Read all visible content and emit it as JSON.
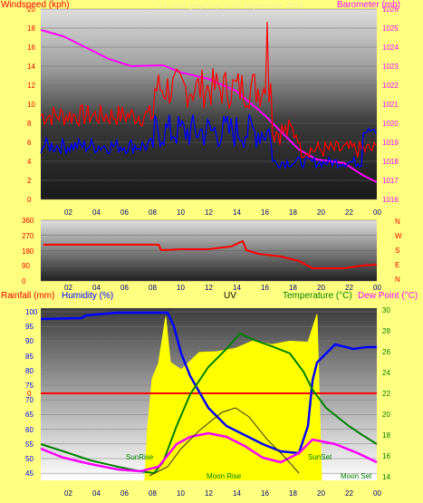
{
  "top_chart": {
    "left_title": "Windspeed (kph)",
    "right_title": "Barometer (mb)",
    "faint_title": "24 hour graph up to 09 September 2016",
    "y_left_ticks": [
      "20",
      "18",
      "16",
      "14",
      "12",
      "10",
      "8",
      "6",
      "4",
      "2",
      "0"
    ],
    "y_right_ticks": [
      "1026",
      "1025",
      "1024",
      "1023",
      "1022",
      "1021",
      "1020",
      "1019",
      "1018",
      "1017",
      "1016"
    ],
    "x_ticks": [
      "02",
      "04",
      "06",
      "08",
      "10",
      "12",
      "14",
      "16",
      "18",
      "20",
      "22",
      "00"
    ],
    "colors": {
      "gust": "#ff0000",
      "average": "#0000ff",
      "barometer": "#ff00ff"
    }
  },
  "wind_dir_chart": {
    "y_ticks": [
      "360",
      "270",
      "180",
      "90",
      "0"
    ],
    "compass": [
      "N",
      "W",
      "S",
      "E",
      "N"
    ],
    "color": "#ff0000"
  },
  "bottom_chart": {
    "rainfall_label": "Rainfall (mm)",
    "humidity_label": "Humidity (%)",
    "uv_label": "UV",
    "temperature_label": "Temperature (°C)",
    "dewpoint_label": "Dew Point (°C)",
    "rain_tick": "0",
    "y_left_ticks": [
      "100",
      "95",
      "90",
      "85",
      "80",
      "75",
      "70",
      "65",
      "60",
      "55",
      "50",
      "45"
    ],
    "y_right_ticks": [
      "30",
      "28",
      "26",
      "24",
      "22",
      "20",
      "18",
      "16",
      "14"
    ],
    "x_ticks": [
      "02",
      "04",
      "06",
      "08",
      "10",
      "12",
      "14",
      "16",
      "18",
      "20",
      "22",
      "00"
    ],
    "annotations": {
      "sunrise": "SunRise",
      "sunset": "SunSet",
      "moonrise": "Moon Rise",
      "moonset": "Moon Set"
    },
    "colors": {
      "humidity": "#0000ff",
      "uv": "#ffff00",
      "temperature": "#008000",
      "dewpoint": "#ff00ff",
      "rain": "#ff0000"
    }
  }
}
